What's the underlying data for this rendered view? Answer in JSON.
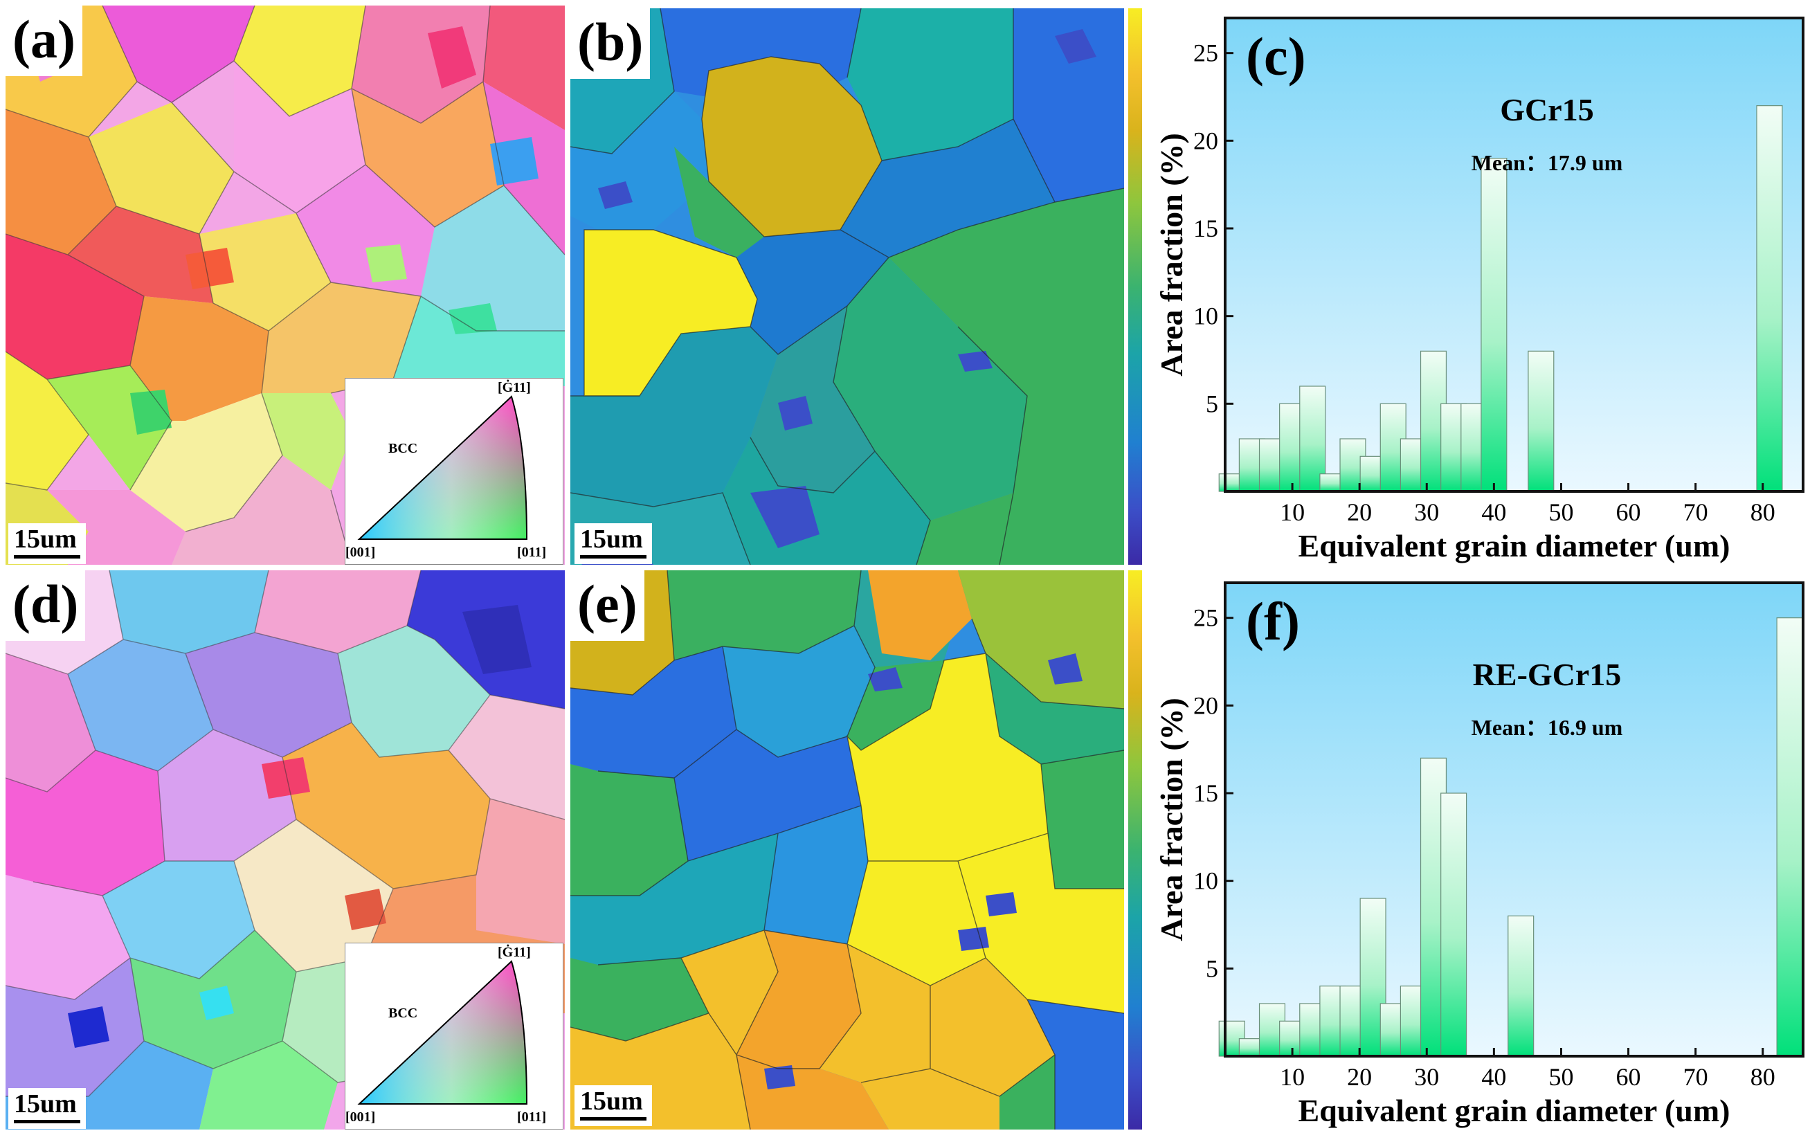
{
  "panels": {
    "a": {
      "label": "(a)",
      "scale": "15um",
      "legend": {
        "crystal": "BCC",
        "top": "[Ġ11]",
        "bottom_left": "[001]",
        "bottom_right": "[011]"
      }
    },
    "b": {
      "label": "(b)",
      "scale": "15um"
    },
    "d": {
      "label": "(d)",
      "scale": "15um",
      "legend": {
        "crystal": "BCC",
        "top": "[Ġ11]",
        "bottom_left": "[001]",
        "bottom_right": "[011]"
      }
    },
    "e": {
      "label": "(e)",
      "scale": "15um"
    }
  },
  "chart_data": [
    {
      "type": "bar",
      "panel_label": "(c)",
      "title": "GCr15",
      "annotation": "Mean：17.9 um",
      "xlabel": "Equivalent grain diameter (um)",
      "ylabel": "Area fraction (%)",
      "xlim": [
        0,
        86
      ],
      "ylim": [
        0,
        27
      ],
      "xticks": [
        10,
        20,
        30,
        40,
        50,
        60,
        70,
        80
      ],
      "yticks": [
        5,
        10,
        15,
        20,
        25
      ],
      "bar_width": 3.8,
      "x": [
        1,
        4,
        7,
        10,
        13,
        16,
        19,
        22,
        25,
        28,
        31,
        34,
        37,
        40,
        47,
        81
      ],
      "values": [
        1,
        3,
        3,
        5,
        6,
        1,
        3,
        2,
        5,
        3,
        8,
        5,
        5,
        19,
        8,
        22
      ],
      "colors": {
        "bg_top": "#7ed6f8",
        "bg_bottom": "#eaf8ff",
        "bar_top": "#f2fdf6",
        "bar_bottom": "#00e07a"
      }
    },
    {
      "type": "bar",
      "panel_label": "(f)",
      "title": "RE-GCr15",
      "annotation": "Mean：16.9 um",
      "xlabel": "Equivalent grain diameter (um)",
      "ylabel": "Area fraction (%)",
      "xlim": [
        0,
        86
      ],
      "ylim": [
        0,
        27
      ],
      "xticks": [
        10,
        20,
        30,
        40,
        50,
        60,
        70,
        80
      ],
      "yticks": [
        5,
        10,
        15,
        20,
        25
      ],
      "bar_width": 3.8,
      "x": [
        1,
        4,
        7,
        10,
        13,
        16,
        19,
        22,
        25,
        28,
        31,
        34,
        44,
        47,
        84
      ],
      "values": [
        2,
        1,
        3,
        2,
        3,
        4,
        4,
        9,
        3,
        4,
        17,
        15,
        8,
        0,
        25
      ],
      "colors": {
        "bg_top": "#7ed6f8",
        "bg_bottom": "#eaf8ff",
        "bar_top": "#f2fdf6",
        "bar_bottom": "#00e07a"
      }
    }
  ]
}
